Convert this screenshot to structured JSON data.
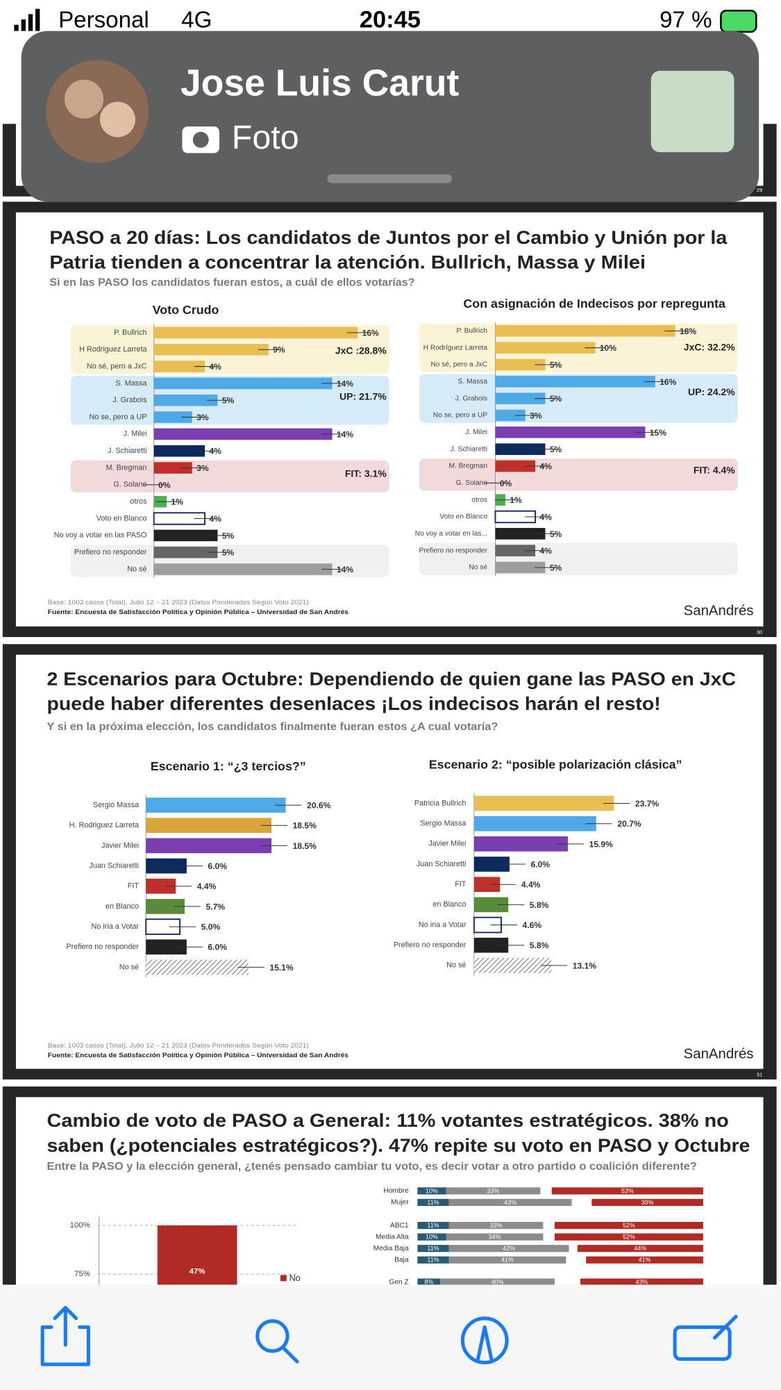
{
  "status_bar": {
    "carrier": "Personal",
    "network": "4G",
    "time": "20:45",
    "battery": "97 %"
  },
  "notification": {
    "sender": "Jose Luis Carut",
    "message": "Foto"
  },
  "slides": [
    {
      "page": "29"
    },
    {
      "title_lines": [
        "PASO a 20 días: Los candidatos de Juntos por el Cambio y Unión por la",
        "Patria tienden a concentrar la atención. Bullrich, Massa y Milei"
      ],
      "subtitle": "Si en las PASO los candidatos fueran estos, a cuál de ellos votarías?",
      "charts": [
        {
          "type": "bar",
          "title": "Voto Crudo",
          "categories": [
            "P. Bullrich",
            "H Rodriguez Larreta",
            "No sé, pero a JxC",
            "S. Massa",
            "J. Grabois",
            "No se, pero a UP",
            "J. Milei",
            "J. Schiaretti",
            "M. Bregman",
            "G. Solano",
            "otros",
            "Voto en Blanco",
            "No voy a votar en las PASO",
            "Prefiero no responder",
            "No sé"
          ],
          "values": [
            16,
            9,
            4,
            14,
            5,
            3,
            14,
            4,
            3,
            0,
            1,
            4,
            5,
            5,
            14
          ],
          "value_labels": [
            "16%",
            "9%",
            "4%",
            "14%",
            "5%",
            "3%",
            "14%",
            "4%",
            "3%",
            "0%",
            "1%",
            "4%",
            "5%",
            "5%",
            "14%"
          ],
          "colors": [
            "#e8bd52",
            "#e8bd52",
            "#e8bd52",
            "#4fa9e6",
            "#4fa9e6",
            "#4fa9e6",
            "#7a3eb1",
            "#0d2a5e",
            "#c0302a",
            "#c0302a",
            "#4caf50",
            "#ffffff",
            "#222222",
            "#666666",
            "#9e9e9e"
          ],
          "groups": [
            "JxC :28.8%",
            "UP: 21.7%",
            "FIT: 3.1%"
          ]
        },
        {
          "type": "bar",
          "title": "Con asignación de Indecisos por repregunta",
          "categories": [
            "P. Bullrich",
            "H Rodríguez Larreta",
            "No sé, pero a JxC",
            "S. Massa",
            "J. Grabois",
            "No se, pero a UP",
            "J. Milei",
            "J. Schiaretti",
            "M. Bregman",
            "G. Solano",
            "otros",
            "Voto en Blanco",
            "No voy a votar en las...",
            "Prefiero no responder",
            "No sé"
          ],
          "values": [
            18,
            10,
            5,
            16,
            5,
            3,
            15,
            5,
            4,
            0,
            1,
            4,
            5,
            4,
            5
          ],
          "value_labels": [
            "18%",
            "10%",
            "5%",
            "16%",
            "5%",
            "3%",
            "15%",
            "5%",
            "4%",
            "0%",
            "1%",
            "4%",
            "5%",
            "4%",
            "5%"
          ],
          "colors": [
            "#e8bd52",
            "#e8bd52",
            "#e8bd52",
            "#4fa9e6",
            "#4fa9e6",
            "#4fa9e6",
            "#7a3eb1",
            "#0d2a5e",
            "#c0302a",
            "#c0302a",
            "#4caf50",
            "#ffffff",
            "#222222",
            "#666666",
            "#9e9e9e"
          ],
          "groups": [
            "JxC: 32.2%",
            "UP: 24.2%",
            "FIT: 4.4%"
          ]
        }
      ],
      "footnote": "Base: 1003 casos (Total), Julio 12 – 21 2023 (Datos Ponderados Según Voto 2021)",
      "source": "Fuente: Encuesta de Satisfacción Política y Opinión Pública – Universidad de San Andrés",
      "logo": "SanAndrés",
      "page": "30"
    },
    {
      "title_lines": [
        "2 Escenarios para Octubre: Dependiendo de quien gane las PASO en JxC",
        "puede haber diferentes desenlaces ¡Los indecisos harán el resto!"
      ],
      "subtitle": "Y si en la próxima elección, los candidatos finalmente fueran estos ¿A cual votaría?",
      "charts": [
        {
          "type": "bar",
          "title": "Escenario 1: “¿3 tercios?”",
          "categories": [
            "Sergio Massa",
            "H. Rodriguez Larreta",
            "Javier Milei",
            "Juan Schiaretti",
            "FIT",
            "en Blanco",
            "No iria a Votar",
            "Prefiero no responder",
            "No sé"
          ],
          "values": [
            20.6,
            18.5,
            18.5,
            6,
            4.4,
            5.7,
            5,
            6,
            15.1
          ],
          "value_labels": [
            "20.6%",
            "18.5%",
            "18.5%",
            "6.0%",
            "4.4%",
            "5.7%",
            "5.0%",
            "6.0%",
            "15.1%"
          ],
          "colors": [
            "#4fa9e6",
            "#d9a53a",
            "#7a3eb1",
            "#0d2a5e",
            "#c0302a",
            "#5a8a3c",
            "#ffffff",
            "#222222",
            "hatched"
          ]
        },
        {
          "type": "bar",
          "title": "Escenario 2: “posible polarización clásica”",
          "categories": [
            "Patricia Bullrich",
            "Sergio Massa",
            "Javier Milei",
            "Juan Schiaretti",
            "FIT",
            "en Blanco",
            "No iria a Votar",
            "Prefiero no responder",
            "No sé"
          ],
          "values": [
            23.7,
            20.7,
            15.9,
            6,
            4.4,
            5.8,
            4.6,
            5.8,
            13.1
          ],
          "value_labels": [
            "23.7%",
            "20.7%",
            "15.9%",
            "6.0%",
            "4.4%",
            "5.8%",
            "4.6%",
            "5.8%",
            "13.1%"
          ],
          "colors": [
            "#e8bd52",
            "#4fa9e6",
            "#7a3eb1",
            "#0d2a5e",
            "#c0302a",
            "#5a8a3c",
            "#ffffff",
            "#222222",
            "hatched"
          ]
        }
      ],
      "footnote": "Base: 1003 casos (Total), Julio 12 – 21 2023 (Datos Ponderados Según Voto 2021)",
      "source": "Fuente: Encuesta de Satisfacción Política y Opinión Pública – Universidad de San Andrés",
      "logo": "SanAndrés",
      "page": "31"
    },
    {
      "title_lines": [
        "Cambio de voto de PASO a General: 11% votantes estratégicos. 38% no",
        "saben (¿potenciales estratégicos?). 47% repite su voto en PASO y Octubre"
      ],
      "subtitle": "Entre la PASO y la elección general, ¿tenés pensado cambiar tu voto, es decir votar a otro partido o coalición diferente?",
      "left_chart": {
        "type": "bar",
        "yticks": [
          {
            "value": 100,
            "label": "100%"
          },
          {
            "value": 75,
            "label": "75%"
          }
        ],
        "value": 47,
        "value_label": "47%",
        "color": "#b22a24",
        "legend": "No"
      },
      "right_chart": {
        "type": "stacked-bar",
        "categories": [
          "Hombre",
          "Mujer",
          "ABC1",
          "Media Alta",
          "Media Baja",
          "Baja",
          "Gen Z"
        ],
        "series": [
          {
            "color": "#2a5b73",
            "values": [
              10,
              11,
              11,
              10,
              11,
              11,
              8
            ],
            "value_labels": [
              "10%",
              "11%",
              "11%",
              "10%",
              "11%",
              "11%",
              "8%"
            ]
          },
          {
            "color": "#8c8c8c",
            "values": [
              33,
              43,
              33,
              34,
              42,
              41,
              40
            ],
            "value_labels": [
              "33%",
              "43%",
              "33%",
              "34%",
              "42%",
              "41%",
              "40%"
            ]
          },
          {
            "color": "#b22a24",
            "values": [
              53,
              39,
              52,
              52,
              44,
              41,
              43
            ],
            "value_labels": [
              "53%",
              "39%",
              "52%",
              "52%",
              "44%",
              "41%",
              "43%"
            ]
          }
        ]
      }
    }
  ]
}
